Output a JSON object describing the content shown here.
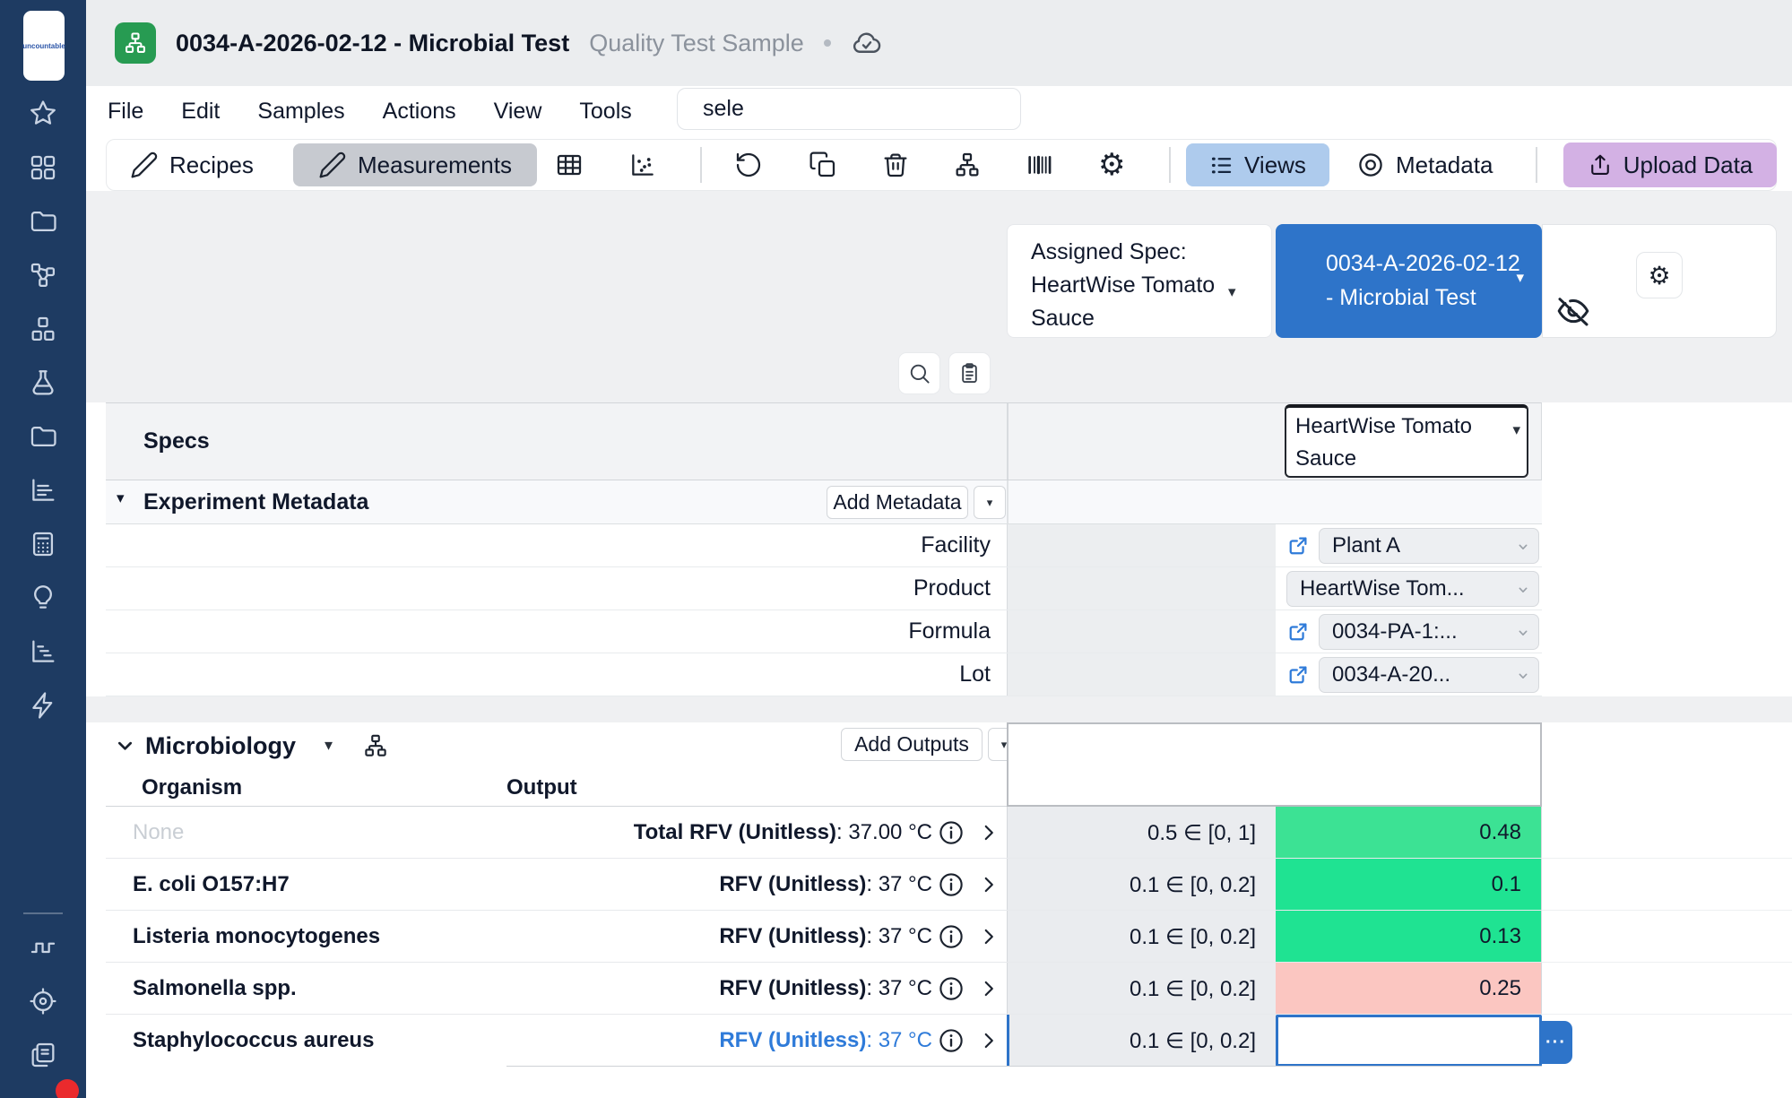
{
  "sidebar": {
    "logo_text": "uncountable",
    "icons_main": [
      "star",
      "apps-grid",
      "folder",
      "share-nodes",
      "cubes",
      "flask",
      "folder",
      "bar-chart",
      "calculator",
      "lightbulb",
      "gantt-chart",
      "lightning-bolt"
    ],
    "icons_bottom": [
      "activity-pulse",
      "target",
      "notes"
    ]
  },
  "header": {
    "title": "0034-A-2026-02-12 - Microbial Test",
    "subtitle": "Quality Test Sample"
  },
  "menu": {
    "items": [
      "File",
      "Edit",
      "Samples",
      "Actions",
      "View",
      "Tools"
    ],
    "search_value": "sele"
  },
  "toolbar": {
    "recipes": "Recipes",
    "measurements": "Measurements",
    "views": "Views",
    "metadata": "Metadata",
    "upload_data": "Upload Data"
  },
  "spec_bar": {
    "assigned_label": "Assigned Spec:",
    "assigned_value": "HeartWise Tomato Sauce",
    "experiment_name": "0034-A-2026-02-12 - Microbial Test"
  },
  "spec_table": {
    "specs_label": "Specs",
    "column_header": "HeartWise Tomato Sauce",
    "metadata_section_label": "Experiment Metadata",
    "add_metadata_label": "Add Metadata",
    "metadata_rows": [
      {
        "label": "Facility",
        "value": "Plant A",
        "link": true
      },
      {
        "label": "Product",
        "value": "HeartWise Tom...",
        "link": false
      },
      {
        "label": "Formula",
        "value": "0034-PA-1:...",
        "link": true
      },
      {
        "label": "Lot",
        "value": "0034-A-20...",
        "link": true
      }
    ]
  },
  "microbiology": {
    "section_label": "Microbiology",
    "add_outputs_label": "Add Outputs",
    "columns": {
      "organism": "Organism",
      "output": "Output"
    },
    "rows": [
      {
        "organism": "None",
        "muted": true,
        "output_bold": "Total RFV (Unitless)",
        "output_rest": ": 37.00 °C",
        "spec": "0.5 ∈ [0, 1]",
        "value": "0.48",
        "status": "pass_soft"
      },
      {
        "organism": "E. coli O157:H7",
        "output_bold": "RFV (Unitless)",
        "output_rest": ": 37 °C",
        "spec": "0.1 ∈ [0, 0.2]",
        "value": "0.1",
        "status": "pass"
      },
      {
        "organism": "Listeria monocytogenes",
        "output_bold": "RFV (Unitless)",
        "output_rest": ": 37 °C",
        "spec": "0.1 ∈ [0, 0.2]",
        "value": "0.13",
        "status": "pass"
      },
      {
        "organism": "Salmonella spp.",
        "output_bold": "RFV (Unitless)",
        "output_rest": ": 37 °C",
        "spec": "0.1 ∈ [0, 0.2]",
        "value": "0.25",
        "status": "fail"
      },
      {
        "organism": "Staphylococcus aureus",
        "blue_output": true,
        "output_bold": "RFV (Unitless)",
        "output_rest": ": 37 °C",
        "spec": "0.1 ∈ [0, 0.2]",
        "value": "",
        "status": "editing",
        "ellipsis": "···"
      }
    ]
  },
  "colors": {
    "sidebar": "#1e3b62",
    "header": "#ebedef",
    "accent": "#2e74c9",
    "link": "#2f7bd9",
    "green": "#1fe392",
    "greensoft": "#3ce294",
    "red": "#fbc6c1",
    "views": "#aecbed",
    "upload": "#d3b1e4",
    "toolsel": "#c7cad0",
    "brand": "#279b52",
    "speccell": "#eaecef"
  }
}
